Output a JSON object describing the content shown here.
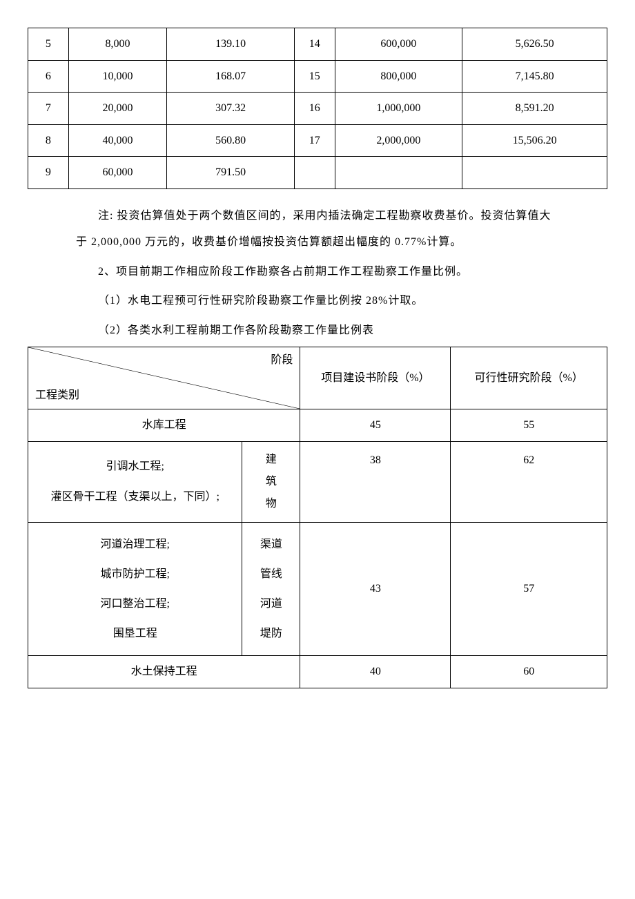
{
  "table1": {
    "rows": [
      [
        "5",
        "8,000",
        "139.10",
        "14",
        "600,000",
        "5,626.50"
      ],
      [
        "6",
        "10,000",
        "168.07",
        "15",
        "800,000",
        "7,145.80"
      ],
      [
        "7",
        "20,000",
        "307.32",
        "16",
        "1,000,000",
        "8,591.20"
      ],
      [
        "8",
        "40,000",
        "560.80",
        "17",
        "2,000,000",
        "15,506.20"
      ],
      [
        "9",
        "60,000",
        "791.50",
        "",
        "",
        ""
      ]
    ],
    "col_widths": [
      "7%",
      "17%",
      "22%",
      "7%",
      "22%",
      "25%"
    ]
  },
  "paragraphs": {
    "note": "注: 投资估算值处于两个数值区间的，采用内插法确定工程勘察收费基价。投资估算值大于 2,000,000 万元的，收费基价增幅按投资估算额超出幅度的 0.77%计算。",
    "p2": "2、项目前期工作相应阶段工作勘察各占前期工作工程勘察工作量比例。",
    "p2_1": "（1）水电工程预可行性研究阶段勘察工作量比例按 28%计取。",
    "p2_2": "（2）各类水利工程前期工作各阶段勘察工作量比例表"
  },
  "table2": {
    "header": {
      "diag_top": "阶段",
      "diag_bottom": "工程类别",
      "col2": "项目建设书阶段（%）",
      "col3": "可行性研究阶段（%）"
    },
    "rows": [
      {
        "name": "水库工程",
        "v1": "45",
        "v2": "55",
        "span": 2
      },
      {
        "names": [
          "引调水工程;",
          "灌区骨干工程（支渠以上，下同）;"
        ],
        "sub": "建筑物",
        "v1": "38",
        "v2": "62"
      },
      {
        "names": [
          "河道治理工程;",
          "城市防护工程;",
          "河口整治工程;",
          "围垦工程"
        ],
        "sub": "渠道管线河道堤防",
        "subs": [
          "渠道",
          "管线",
          "河道",
          "堤防"
        ],
        "v1": "43",
        "v2": "57"
      },
      {
        "name": "水土保持工程",
        "v1": "40",
        "v2": "60",
        "span": 2
      }
    ],
    "col_widths": [
      "37%",
      "10%",
      "26%",
      "27%"
    ]
  }
}
